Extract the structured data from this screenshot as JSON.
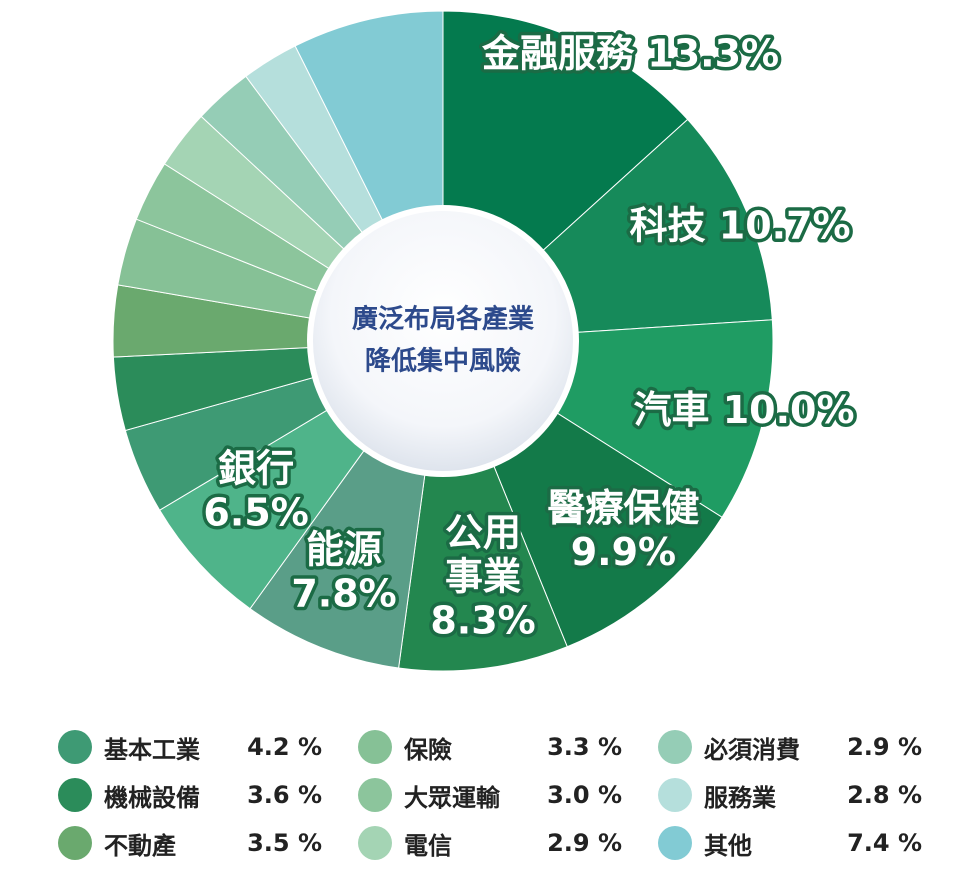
{
  "chart_data": {
    "type": "pie",
    "variant": "donut",
    "center_text": [
      "廣泛布局各產業",
      "降低集中風險"
    ],
    "slices": [
      {
        "name": "金融服務",
        "value": 13.3,
        "value_label": "13.3%",
        "color": "#047a4e",
        "label_lines": [
          "金融服務 13.3%"
        ]
      },
      {
        "name": "科技",
        "value": 10.7,
        "value_label": "10.7%",
        "color": "#168a5a",
        "label_lines": [
          "科技 10.7%"
        ]
      },
      {
        "name": "汽車",
        "value": 10.0,
        "value_label": "10.0%",
        "color": "#1f9c63",
        "label_lines": [
          "汽車 10.0%"
        ]
      },
      {
        "name": "醫療保健",
        "value": 9.9,
        "value_label": "9.9%",
        "color": "#137a49",
        "label_lines": [
          "醫療保健",
          "9.9%"
        ]
      },
      {
        "name": "公用事業",
        "value": 8.3,
        "value_label": "8.3%",
        "color": "#23874f",
        "label_lines": [
          "公用",
          "事業",
          "8.3%"
        ]
      },
      {
        "name": "能源",
        "value": 7.8,
        "value_label": "7.8%",
        "color": "#5a9e88",
        "label_lines": [
          "能源",
          "7.8%"
        ]
      },
      {
        "name": "銀行",
        "value": 6.5,
        "value_label": "6.5%",
        "color": "#4fb48a",
        "label_lines": [
          "銀行",
          "6.5%"
        ]
      },
      {
        "name": "基本工業",
        "value": 4.2,
        "value_label": "4.2 %",
        "color": "#3e9a74",
        "label_lines": []
      },
      {
        "name": "機械設備",
        "value": 3.6,
        "value_label": "3.6 %",
        "color": "#2b8c5a",
        "label_lines": []
      },
      {
        "name": "不動產",
        "value": 3.5,
        "value_label": "3.5 %",
        "color": "#6aa96e",
        "label_lines": []
      },
      {
        "name": "保險",
        "value": 3.3,
        "value_label": "3.3 %",
        "color": "#86c196",
        "label_lines": []
      },
      {
        "name": "大眾運輸",
        "value": 3.0,
        "value_label": "3.0 %",
        "color": "#8cc59c",
        "label_lines": []
      },
      {
        "name": "電信",
        "value": 2.9,
        "value_label": "2.9 %",
        "color": "#a4d4b4",
        "label_lines": []
      },
      {
        "name": "必須消費",
        "value": 2.9,
        "value_label": "2.9 %",
        "color": "#95cdb6",
        "label_lines": []
      },
      {
        "name": "服務業",
        "value": 2.8,
        "value_label": "2.8 %",
        "color": "#b5dfdc",
        "label_lines": []
      },
      {
        "name": "其他",
        "value": 7.4,
        "value_label": "7.4 %",
        "color": "#82cbd4",
        "label_lines": []
      }
    ],
    "legend": [
      {
        "name": "基本工業",
        "value_label": "4.2 %",
        "color": "#3e9a74"
      },
      {
        "name": "保險",
        "value_label": "3.3 %",
        "color": "#86c196"
      },
      {
        "name": "必須消費",
        "value_label": "2.9 %",
        "color": "#95cdb6"
      },
      {
        "name": "機械設備",
        "value_label": "3.6 %",
        "color": "#2b8c5a"
      },
      {
        "name": "大眾運輸",
        "value_label": "3.0 %",
        "color": "#8cc59c"
      },
      {
        "name": "服務業",
        "value_label": "2.8 %",
        "color": "#b5dfdc"
      },
      {
        "name": "不動產",
        "value_label": "3.5 %",
        "color": "#6aa96e"
      },
      {
        "name": "電信",
        "value_label": "2.9 %",
        "color": "#a4d4b4"
      },
      {
        "name": "其他",
        "value_label": "7.4 %",
        "color": "#82cbd4"
      }
    ],
    "legend_placement": "bottom"
  }
}
